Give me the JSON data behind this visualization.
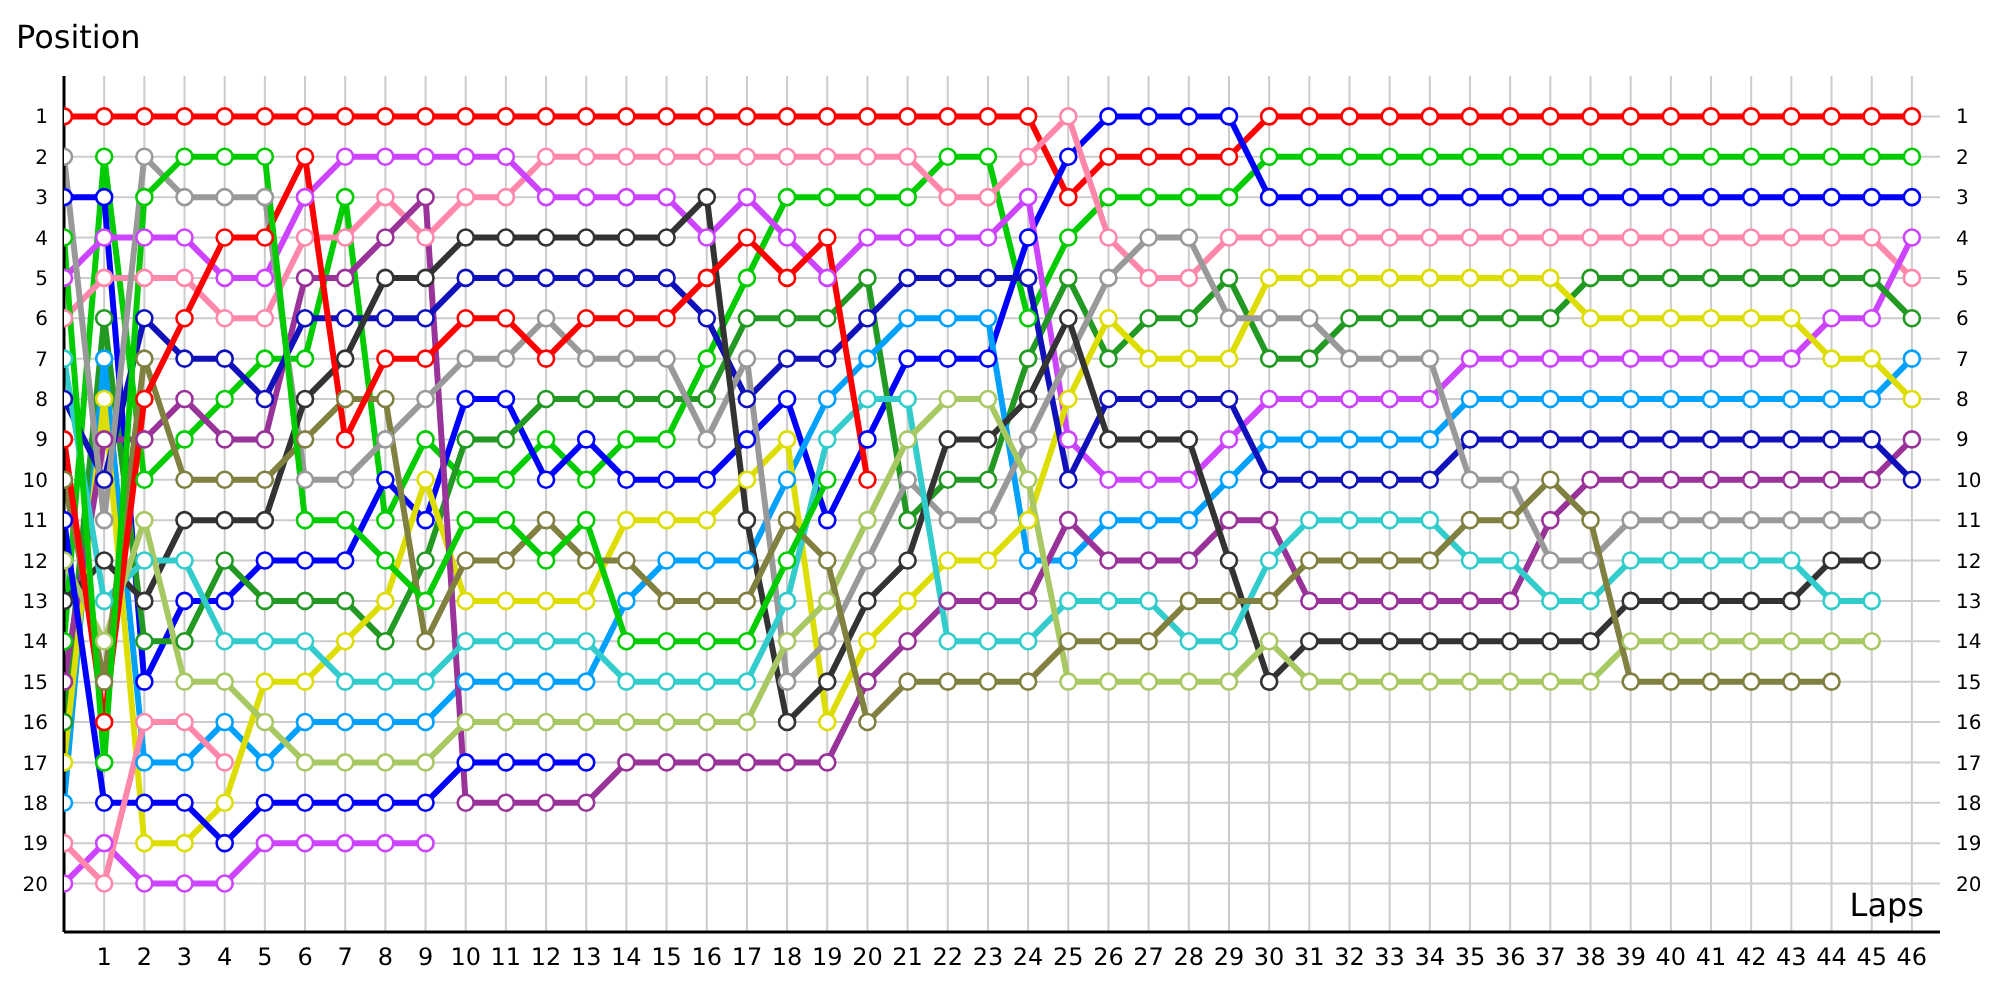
{
  "chart_data": {
    "type": "line",
    "xlabel": "Laps",
    "ylabel": "Position",
    "grid": true,
    "marker": "circle",
    "line_style": "solid",
    "x": [
      0,
      1,
      2,
      3,
      4,
      5,
      6,
      7,
      8,
      9,
      10,
      11,
      12,
      13,
      14,
      15,
      16,
      17,
      18,
      19,
      20,
      21,
      22,
      23,
      24,
      25,
      26,
      27,
      28,
      29,
      30,
      31,
      32,
      33,
      34,
      35,
      36,
      37,
      38,
      39,
      40,
      41,
      42,
      43,
      44,
      45,
      46
    ],
    "xlim": [
      0,
      46.7
    ],
    "xticks": [
      1,
      2,
      3,
      4,
      5,
      6,
      7,
      8,
      9,
      10,
      11,
      12,
      13,
      14,
      15,
      16,
      17,
      18,
      19,
      20,
      21,
      22,
      23,
      24,
      25,
      26,
      27,
      28,
      29,
      30,
      31,
      32,
      33,
      34,
      35,
      36,
      37,
      38,
      39,
      40,
      41,
      42,
      43,
      44,
      45,
      46
    ],
    "ylim": [
      21.2,
      0
    ],
    "yticks": [
      1,
      2,
      3,
      4,
      5,
      6,
      7,
      8,
      9,
      10,
      11,
      12,
      13,
      14,
      15,
      16,
      17,
      18,
      19,
      20
    ],
    "y2lim": [
      21.2,
      0
    ],
    "y2ticks": [
      1,
      2,
      3,
      4,
      5,
      6,
      7,
      8,
      9,
      10,
      11,
      12,
      13,
      14,
      15,
      16,
      17,
      18,
      19,
      20
    ],
    "series": [
      {
        "color": "#ff0000",
        "values": [
          1,
          1,
          1,
          1,
          1,
          1,
          1,
          1,
          1,
          1,
          1,
          1,
          1,
          1,
          1,
          1,
          1,
          1,
          1,
          1,
          1,
          1,
          1,
          1,
          1,
          3,
          2,
          2,
          2,
          2,
          1,
          1,
          1,
          1,
          1,
          1,
          1,
          1,
          1,
          1,
          1,
          1,
          1,
          1,
          1,
          1,
          1
        ]
      },
      {
        "color": "#00cc00",
        "values": [
          14,
          2,
          10,
          9,
          8,
          7,
          7,
          3,
          11,
          9,
          10,
          10,
          9,
          10,
          9,
          9,
          7,
          5,
          3,
          3,
          3,
          3,
          2,
          2,
          6,
          4,
          3,
          3,
          3,
          3,
          2,
          2,
          2,
          2,
          2,
          2,
          2,
          2,
          2,
          2,
          2,
          2,
          2,
          2,
          2,
          2,
          2
        ]
      },
      {
        "color": "#0000ff",
        "values": [
          3,
          3,
          15,
          13,
          13,
          12,
          12,
          12,
          10,
          11,
          8,
          8,
          10,
          9,
          10,
          10,
          10,
          9,
          8,
          11,
          9,
          7,
          7,
          7,
          4,
          2,
          1,
          1,
          1,
          1,
          3,
          3,
          3,
          3,
          3,
          3,
          3,
          3,
          3,
          3,
          3,
          3,
          3,
          3,
          3,
          3,
          3
        ]
      },
      {
        "color": "#ff88aa",
        "values": [
          6,
          5,
          5,
          5,
          6,
          6,
          4,
          4,
          3,
          4,
          3,
          3,
          2,
          2,
          2,
          2,
          2,
          2,
          2,
          2,
          2,
          2,
          3,
          3,
          2,
          1,
          4,
          5,
          5,
          4,
          4,
          4,
          4,
          4,
          4,
          4,
          4,
          4,
          4,
          4,
          4,
          4,
          4,
          4,
          4,
          4,
          5
        ]
      },
      {
        "color": "#cc44ff",
        "values": [
          5,
          4,
          4,
          4,
          5,
          5,
          3,
          2,
          2,
          2,
          2,
          2,
          3,
          3,
          3,
          3,
          4,
          3,
          4,
          5,
          4,
          4,
          4,
          4,
          3,
          9,
          10,
          10,
          10,
          9,
          8,
          8,
          8,
          8,
          8,
          7,
          7,
          7,
          7,
          7,
          7,
          7,
          7,
          7,
          6,
          6,
          4
        ]
      },
      {
        "color": "#229922",
        "values": [
          16,
          6,
          14,
          14,
          12,
          13,
          13,
          13,
          14,
          12,
          9,
          9,
          8,
          8,
          8,
          8,
          8,
          6,
          6,
          6,
          5,
          11,
          10,
          10,
          7,
          5,
          7,
          6,
          6,
          5,
          7,
          7,
          6,
          6,
          6,
          6,
          6,
          6,
          5,
          5,
          5,
          5,
          5,
          5,
          5,
          5,
          6
        ]
      },
      {
        "color": "#00a0ff",
        "values": [
          18,
          7,
          17,
          17,
          16,
          17,
          16,
          16,
          16,
          16,
          15,
          15,
          15,
          15,
          13,
          12,
          12,
          12,
          10,
          8,
          7,
          6,
          6,
          6,
          12,
          12,
          11,
          11,
          11,
          10,
          9,
          9,
          9,
          9,
          9,
          8,
          8,
          8,
          8,
          8,
          8,
          8,
          8,
          8,
          8,
          8,
          7
        ]
      },
      {
        "color": "#dddd00",
        "values": [
          17,
          8,
          19,
          19,
          18,
          15,
          15,
          14,
          13,
          10,
          13,
          13,
          13,
          13,
          11,
          11,
          11,
          10,
          9,
          16,
          14,
          13,
          12,
          12,
          11,
          8,
          6,
          7,
          7,
          7,
          5,
          5,
          5,
          5,
          5,
          5,
          5,
          5,
          6,
          6,
          6,
          6,
          6,
          6,
          7,
          7,
          8
        ]
      },
      {
        "color": "#993399",
        "values": [
          15,
          9,
          9,
          8,
          9,
          9,
          5,
          5,
          4,
          3,
          18,
          18,
          18,
          18,
          17,
          17,
          17,
          17,
          17,
          17,
          15,
          14,
          13,
          13,
          13,
          11,
          12,
          12,
          12,
          11,
          11,
          13,
          13,
          13,
          13,
          13,
          13,
          11,
          10,
          10,
          10,
          10,
          10,
          10,
          10,
          10,
          9
        ]
      },
      {
        "color": "#1111bb",
        "values": [
          8,
          10,
          6,
          7,
          7,
          8,
          6,
          6,
          6,
          6,
          5,
          5,
          5,
          5,
          5,
          5,
          6,
          8,
          7,
          7,
          6,
          5,
          5,
          5,
          5,
          10,
          8,
          8,
          8,
          8,
          10,
          10,
          10,
          10,
          10,
          9,
          9,
          9,
          9,
          9,
          9,
          9,
          9,
          9,
          9,
          9,
          10
        ]
      },
      {
        "color": "#999999",
        "values": [
          2,
          11,
          2,
          3,
          3,
          3,
          10,
          10,
          9,
          8,
          7,
          7,
          6,
          7,
          7,
          7,
          9,
          7,
          15,
          14,
          12,
          10,
          11,
          11,
          9,
          7,
          5,
          4,
          4,
          6,
          6,
          6,
          7,
          7,
          7,
          10,
          10,
          12,
          12,
          11,
          11,
          11,
          11,
          11,
          11,
          11,
          null
        ]
      },
      {
        "color": "#333333",
        "values": [
          13,
          12,
          13,
          11,
          11,
          11,
          8,
          7,
          5,
          5,
          4,
          4,
          4,
          4,
          4,
          4,
          3,
          11,
          16,
          15,
          13,
          12,
          9,
          9,
          8,
          6,
          9,
          9,
          9,
          12,
          15,
          14,
          14,
          14,
          14,
          14,
          14,
          14,
          14,
          13,
          13,
          13,
          13,
          13,
          12,
          12,
          null
        ]
      },
      {
        "color": "#33cccc",
        "values": [
          7,
          13,
          12,
          12,
          14,
          14,
          14,
          15,
          15,
          15,
          14,
          14,
          14,
          14,
          15,
          15,
          15,
          15,
          13,
          9,
          8,
          8,
          14,
          14,
          14,
          13,
          13,
          13,
          14,
          14,
          12,
          11,
          11,
          11,
          11,
          12,
          12,
          13,
          13,
          12,
          12,
          12,
          12,
          12,
          13,
          13,
          null
        ]
      },
      {
        "color": "#a8c864",
        "values": [
          12,
          14,
          11,
          15,
          15,
          16,
          17,
          17,
          17,
          17,
          16,
          16,
          16,
          16,
          16,
          16,
          16,
          16,
          14,
          13,
          11,
          9,
          8,
          8,
          10,
          15,
          15,
          15,
          15,
          15,
          14,
          15,
          15,
          15,
          15,
          15,
          15,
          15,
          15,
          14,
          14,
          14,
          14,
          14,
          14,
          14,
          null
        ]
      },
      {
        "color": "#808040",
        "values": [
          10,
          15,
          7,
          10,
          10,
          10,
          9,
          8,
          8,
          14,
          12,
          12,
          11,
          12,
          12,
          13,
          13,
          13,
          11,
          12,
          16,
          15,
          15,
          15,
          15,
          14,
          14,
          14,
          13,
          13,
          13,
          12,
          12,
          12,
          12,
          11,
          11,
          10,
          11,
          15,
          15,
          15,
          15,
          15,
          15,
          null,
          null
        ]
      },
      {
        "color": "#ff0000",
        "values": [
          9,
          16,
          8,
          6,
          4,
          4,
          2,
          9,
          7,
          7,
          6,
          6,
          7,
          6,
          6,
          6,
          5,
          4,
          5,
          4,
          10,
          null,
          null,
          null,
          null,
          null,
          null,
          null,
          null,
          null,
          null,
          null,
          null,
          null,
          null,
          null,
          null,
          null,
          null,
          null,
          null,
          null,
          null,
          null,
          null,
          null,
          null
        ]
      },
      {
        "color": "#00cc00",
        "values": [
          4,
          17,
          3,
          2,
          2,
          2,
          11,
          11,
          12,
          13,
          11,
          11,
          12,
          11,
          14,
          14,
          14,
          14,
          12,
          10,
          null,
          null,
          null,
          null,
          null,
          null,
          null,
          null,
          null,
          null,
          null,
          null,
          null,
          null,
          null,
          null,
          null,
          null,
          null,
          null,
          null,
          null,
          null,
          null,
          null,
          null,
          null
        ]
      },
      {
        "color": "#0000ff",
        "values": [
          11,
          18,
          18,
          18,
          19,
          18,
          18,
          18,
          18,
          18,
          17,
          17,
          17,
          17,
          null,
          null,
          null,
          null,
          null,
          null,
          null,
          null,
          null,
          null,
          null,
          null,
          null,
          null,
          null,
          null,
          null,
          null,
          null,
          null,
          null,
          null,
          null,
          null,
          null,
          null,
          null,
          null,
          null,
          null,
          null,
          null,
          null
        ]
      },
      {
        "color": "#cc44ff",
        "values": [
          20,
          19,
          20,
          20,
          20,
          19,
          19,
          19,
          19,
          19,
          null,
          null,
          null,
          null,
          null,
          null,
          null,
          null,
          null,
          null,
          null,
          null,
          null,
          null,
          null,
          null,
          null,
          null,
          null,
          null,
          null,
          null,
          null,
          null,
          null,
          null,
          null,
          null,
          null,
          null,
          null,
          null,
          null,
          null,
          null,
          null,
          null
        ]
      },
      {
        "color": "#ff88aa",
        "values": [
          19,
          20,
          16,
          16,
          17,
          null,
          null,
          null,
          null,
          null,
          null,
          null,
          null,
          null,
          null,
          null,
          null,
          null,
          null,
          null,
          null,
          null,
          null,
          null,
          null,
          null,
          null,
          null,
          null,
          null,
          null,
          null,
          null,
          null,
          null,
          null,
          null,
          null,
          null,
          null,
          null,
          null,
          null,
          null,
          null,
          null,
          null
        ]
      }
    ]
  }
}
